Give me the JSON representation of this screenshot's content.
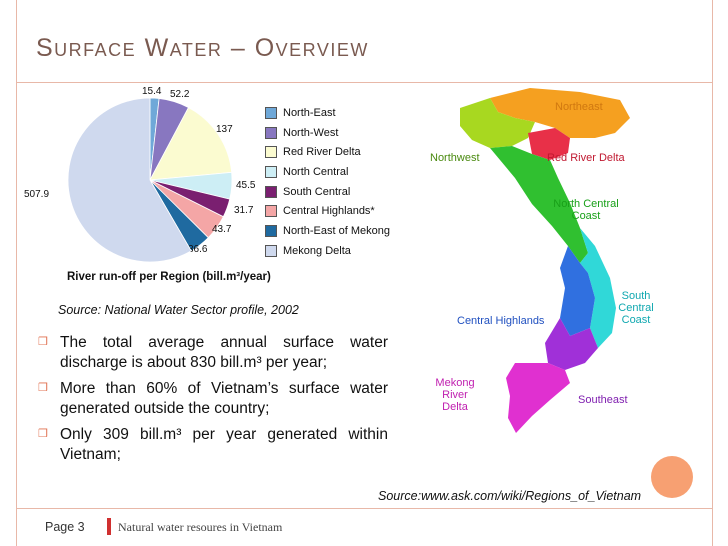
{
  "slide": {
    "title": "Surface Water – Overview",
    "source_chart": "Source: National Water Sector profile, 2002",
    "source_map": "Source:www.ask.com/wiki/Regions_of_Vietnam",
    "bullets": [
      "The total average annual surface water discharge is about 830 bill.m³ per year;",
      "More than 60% of Vietnam’s surface water generated outside the country;",
      "Only 309 bill.m³ per year generated within Vietnam;"
    ],
    "footer_page": "Page 3",
    "footer_text": "Natural water resoures in Vietnam"
  },
  "chart_data": {
    "type": "pie",
    "title": "River run-off per Region (bill.m³/year)",
    "categories": [
      "North-East",
      "North-West",
      "Red River Delta",
      "North Central",
      "South Central",
      "Central Highlands*",
      "North-East of Mekong",
      "Mekong Delta"
    ],
    "values": [
      15.4,
      52.2,
      137,
      45.5,
      31.7,
      43.7,
      36.6,
      507.9
    ],
    "value_labels": [
      "15.4",
      "52.2",
      "137",
      "45.5",
      "31.7",
      "43.7",
      "36.6",
      "507.9"
    ],
    "colors": [
      "#6fa8d8",
      "#8877c0",
      "#fbfbd0",
      "#cdeef5",
      "#7a1f70",
      "#f4a6a6",
      "#1f6aa0",
      "#cfd9ee"
    ],
    "legend_position": "right"
  },
  "map": {
    "regions": [
      {
        "name": "Northeast",
        "color": "#f5a020"
      },
      {
        "name": "Northwest",
        "color": "#a8d820"
      },
      {
        "name": "Red River Delta",
        "color": "#e83048"
      },
      {
        "name": "North Central Coast",
        "color": "#30c030"
      },
      {
        "name": "South Central Coast",
        "color": "#30d8d8"
      },
      {
        "name": "Central Highlands",
        "color": "#3070e0"
      },
      {
        "name": "Southeast",
        "color": "#a030d8"
      },
      {
        "name": "Mekong River Delta",
        "color": "#e030d0"
      }
    ]
  }
}
